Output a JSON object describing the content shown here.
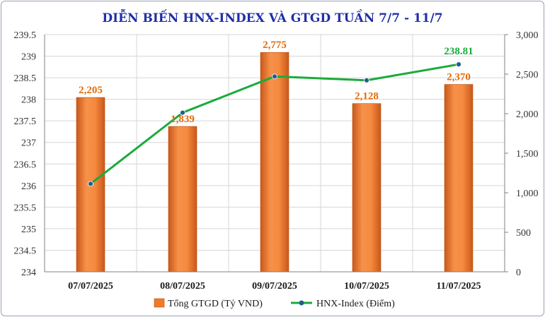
{
  "chart_data": {
    "type": "bar",
    "title": "DIỄN BIẾN HNX-INDEX VÀ GTGD TUẦN 7/7 - 11/7",
    "categories": [
      "07/07/2025",
      "08/07/2025",
      "09/07/2025",
      "10/07/2025",
      "11/07/2025"
    ],
    "series": [
      {
        "name": "Tổng GTGD (Tỷ VND)",
        "type": "bar",
        "axis": "right",
        "values": [
          2205,
          1839,
          2775,
          2128,
          2370
        ],
        "labels": [
          "2,205",
          "1,839",
          "2,775",
          "2,128",
          "2,370"
        ],
        "color": "#f07a2c"
      },
      {
        "name": "HNX-Index (Điểm)",
        "type": "line",
        "axis": "left",
        "values": [
          236.04,
          237.69,
          238.53,
          238.44,
          238.81
        ],
        "labels": [
          "",
          "",
          "",
          "",
          "238.81"
        ],
        "color": "#1aab3c",
        "marker_color": "#1f5f8f"
      }
    ],
    "y_left": {
      "range": [
        234,
        239.5
      ],
      "ticks": [
        234,
        234.5,
        235,
        235.5,
        236,
        236.5,
        237,
        237.5,
        238,
        238.5,
        239,
        239.5
      ],
      "tick_labels": [
        "234",
        "234.5",
        "235",
        "235.5",
        "236",
        "236.5",
        "237",
        "237.5",
        "238",
        "238.5",
        "239",
        "239.5"
      ]
    },
    "y_right": {
      "range": [
        0,
        3000
      ],
      "ticks": [
        0,
        500,
        1000,
        1500,
        2000,
        2500,
        3000
      ],
      "tick_labels": [
        "0",
        "500",
        "1,000",
        "1,500",
        "2,000",
        "2,500",
        "3,000"
      ]
    },
    "grid": true,
    "legend": "bottom"
  }
}
